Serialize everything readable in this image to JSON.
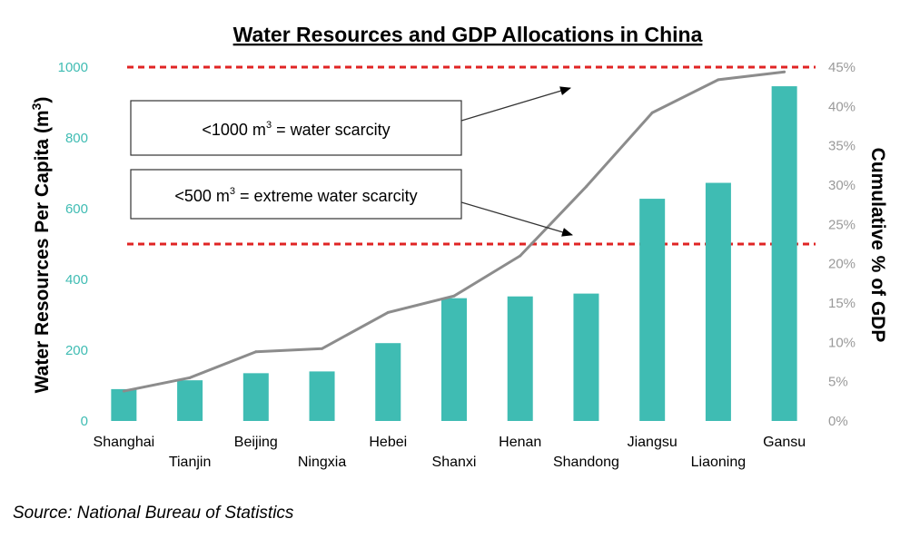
{
  "chart_data": {
    "type": "bar",
    "title": "Water Resources and GDP Allocations in China",
    "ylabel": "Water Resources Per Capita (m3)",
    "y2label": "Cumulative % of GDP",
    "categories": [
      "Shanghai",
      "Tianjin",
      "Beijing",
      "Ningxia",
      "Hebei",
      "Shanxi",
      "Henan",
      "Shandong",
      "Jiangsu",
      "Liaoning",
      "Gansu"
    ],
    "series": [
      {
        "name": "",
        "type": "bar",
        "axis": "left",
        "color": "#3fbcb3",
        "values": [
          90,
          115,
          135,
          140,
          220,
          347,
          352,
          360,
          628,
          673,
          946
        ]
      },
      {
        "name": "",
        "type": "line",
        "axis": "right",
        "color": "#8c8c8c",
        "values": [
          3.8,
          5.5,
          8.8,
          9.2,
          13.8,
          15.9,
          21.0,
          29.8,
          39.2,
          43.4,
          44.4
        ]
      }
    ],
    "ylim": [
      0,
      1000
    ],
    "y_ticks": [
      "0",
      "200",
      "400",
      "600",
      "800",
      "1000"
    ],
    "y2lim": [
      0,
      45
    ],
    "y2_ticks": [
      "0%",
      "5%",
      "10%",
      "15%",
      "20%",
      "25%",
      "30%",
      "35%",
      "40%",
      "45%"
    ],
    "reference_lines": [
      {
        "value": 1000,
        "axis": "left",
        "style": "dashed",
        "color": "#e02424"
      },
      {
        "value": 500,
        "axis": "left",
        "style": "dashed",
        "color": "#e02424"
      }
    ],
    "annotations": [
      {
        "text": "<1000 m",
        "sup": "3",
        "suffix": " = water scarcity",
        "points_to": 1000
      },
      {
        "text": "<500 m",
        "sup": "3",
        "suffix": " = extreme water scarcity",
        "points_to": 500
      }
    ],
    "grid": false
  },
  "source": "Source: National Bureau of Statistics"
}
